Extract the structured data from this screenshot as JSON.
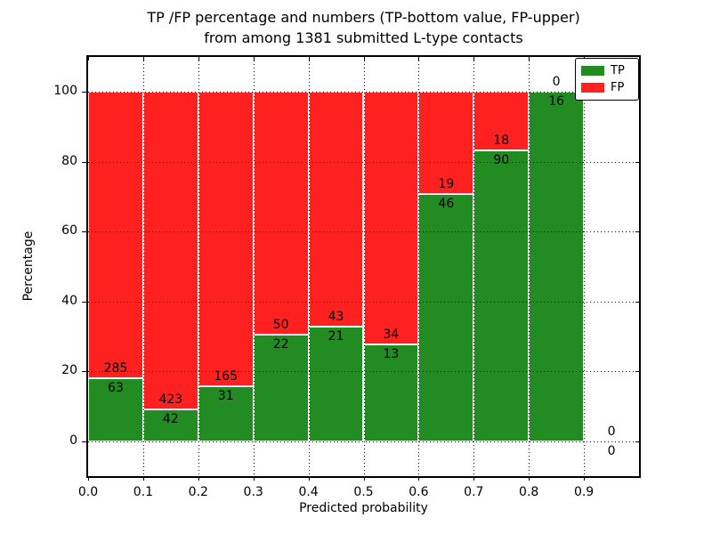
{
  "figure": {
    "title_line1": "TP /FP percentage and numbers (TP-bottom value, FP-upper)",
    "title_line2": "from among 1381 submitted L-type contacts"
  },
  "chart_data": {
    "type": "bar",
    "stacked": true,
    "normalized": "each bin scaled to 100%",
    "title": "TP /FP percentage and numbers (TP-bottom value, FP-upper) from among 1381 submitted L-type contacts",
    "total_submitted": 1381,
    "xlabel": "Predicted probability",
    "ylabel": "Percentage",
    "bin_edges": [
      0.0,
      0.1,
      0.2,
      0.3,
      0.4,
      0.5,
      0.6,
      0.7,
      0.8,
      0.9,
      1.0
    ],
    "categories": [
      "0.0-0.1",
      "0.1-0.2",
      "0.2-0.3",
      "0.3-0.4",
      "0.4-0.5",
      "0.5-0.6",
      "0.6-0.7",
      "0.7-0.8",
      "0.8-0.9",
      "0.9-1.0"
    ],
    "series": [
      {
        "name": "TP",
        "color": "#228B22",
        "counts": [
          63,
          42,
          31,
          22,
          21,
          13,
          46,
          90,
          16,
          0
        ]
      },
      {
        "name": "FP",
        "color": "#FF2020",
        "counts": [
          285,
          423,
          165,
          50,
          43,
          34,
          19,
          18,
          0,
          0
        ]
      }
    ],
    "tp_percent_per_bin": [
      18.1,
      9.0,
      15.8,
      30.6,
      32.8,
      27.7,
      70.8,
      83.3,
      100.0,
      0.0
    ],
    "xticks": [
      "0.0",
      "0.1",
      "0.2",
      "0.3",
      "0.4",
      "0.5",
      "0.6",
      "0.7",
      "0.8",
      "0.9"
    ],
    "xtick_values": [
      0.0,
      0.1,
      0.2,
      0.3,
      0.4,
      0.5,
      0.6,
      0.7,
      0.8,
      0.9
    ],
    "yticks": [
      "0",
      "20",
      "40",
      "60",
      "80",
      "100"
    ],
    "ytick_values": [
      0,
      20,
      40,
      60,
      80,
      100
    ],
    "xlim": [
      0.0,
      1.0
    ],
    "ylim": [
      -10,
      110
    ],
    "grid": true,
    "grid_style": "dotted",
    "legend_position": "upper right",
    "legend_entries": [
      "TP",
      "FP"
    ],
    "frame_color": "#000000",
    "background_color": "#ffffff"
  }
}
